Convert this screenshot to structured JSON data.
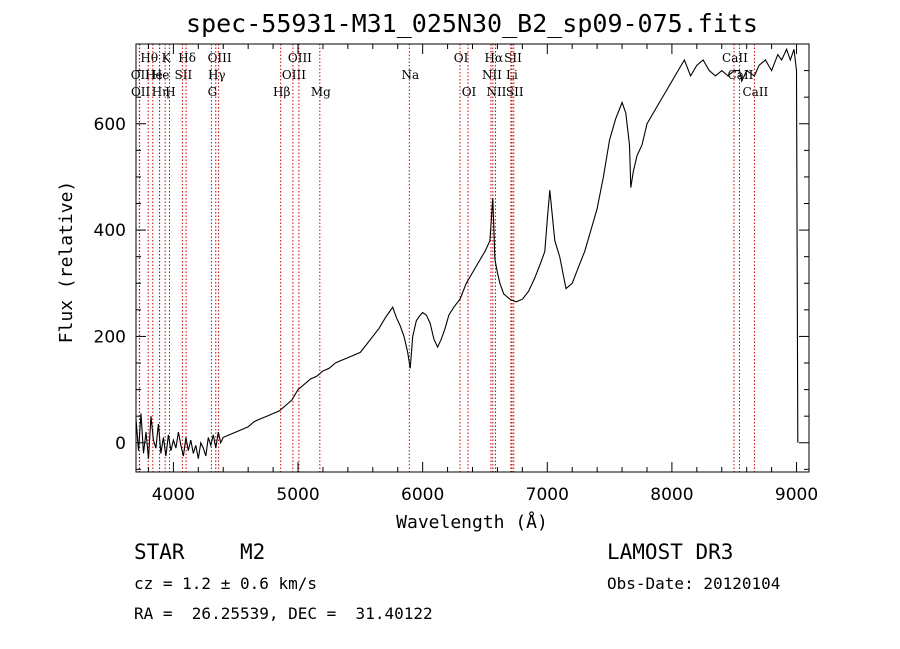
{
  "chart_data": {
    "type": "line",
    "title": "spec-55931-M31_025N30_B2_sp09-075.fits",
    "xlabel": "Wavelength (Å)",
    "ylabel": "Flux (relative)",
    "xlim": [
      3700,
      9100
    ],
    "ylim": [
      -55,
      750
    ],
    "xticks": [
      4000,
      5000,
      6000,
      7000,
      8000,
      9000
    ],
    "yticks": [
      0,
      200,
      400,
      600
    ],
    "series": [
      {
        "name": "flux",
        "x": [
          3700,
          3720,
          3740,
          3760,
          3780,
          3800,
          3820,
          3840,
          3860,
          3880,
          3900,
          3920,
          3940,
          3960,
          3980,
          4000,
          4020,
          4040,
          4060,
          4080,
          4100,
          4120,
          4140,
          4160,
          4180,
          4200,
          4220,
          4240,
          4260,
          4280,
          4300,
          4320,
          4340,
          4360,
          4380,
          4400,
          4450,
          4500,
          4550,
          4600,
          4650,
          4700,
          4750,
          4800,
          4850,
          4900,
          4950,
          5000,
          5050,
          5100,
          5150,
          5200,
          5250,
          5300,
          5350,
          5400,
          5450,
          5500,
          5550,
          5600,
          5650,
          5700,
          5730,
          5760,
          5790,
          5820,
          5850,
          5880,
          5900,
          5920,
          5950,
          5980,
          6000,
          6030,
          6060,
          6090,
          6120,
          6150,
          6180,
          6210,
          6250,
          6300,
          6350,
          6400,
          6450,
          6500,
          6540,
          6563,
          6580,
          6600,
          6620,
          6650,
          6700,
          6750,
          6800,
          6850,
          6900,
          6950,
          6980,
          7000,
          7020,
          7060,
          7100,
          7150,
          7200,
          7250,
          7300,
          7350,
          7400,
          7450,
          7500,
          7550,
          7600,
          7630,
          7660,
          7670,
          7690,
          7720,
          7760,
          7800,
          7850,
          7900,
          7950,
          8000,
          8050,
          8100,
          8150,
          8200,
          8250,
          8300,
          8350,
          8400,
          8450,
          8500,
          8542,
          8560,
          8600,
          8662,
          8700,
          8750,
          8800,
          8850,
          8880,
          8920,
          8950,
          8980,
          9000,
          9010
        ],
        "values": [
          45,
          -15,
          55,
          -20,
          20,
          -30,
          50,
          5,
          -10,
          35,
          -20,
          10,
          -25,
          15,
          -15,
          5,
          -10,
          20,
          -5,
          -25,
          10,
          -15,
          5,
          -20,
          -5,
          -30,
          0,
          -10,
          -25,
          10,
          -5,
          15,
          -10,
          20,
          0,
          10,
          15,
          20,
          25,
          30,
          40,
          45,
          50,
          55,
          60,
          70,
          80,
          100,
          110,
          120,
          125,
          135,
          140,
          150,
          155,
          160,
          165,
          170,
          185,
          200,
          215,
          235,
          245,
          255,
          235,
          220,
          200,
          170,
          140,
          200,
          230,
          240,
          245,
          240,
          225,
          195,
          180,
          195,
          215,
          240,
          255,
          270,
          300,
          320,
          340,
          360,
          380,
          460,
          345,
          320,
          300,
          280,
          270,
          265,
          270,
          285,
          310,
          340,
          360,
          420,
          475,
          380,
          350,
          290,
          300,
          330,
          360,
          400,
          440,
          500,
          570,
          610,
          640,
          620,
          560,
          480,
          510,
          540,
          560,
          600,
          620,
          640,
          660,
          680,
          700,
          720,
          690,
          710,
          720,
          700,
          690,
          700,
          690,
          700,
          700,
          680,
          700,
          690,
          710,
          720,
          700,
          730,
          720,
          740,
          720,
          740,
          700,
          0
        ]
      }
    ],
    "lines": [
      {
        "name": "Hθ",
        "wave": 3798,
        "row": 1
      },
      {
        "name": "OII",
        "wave": 3727,
        "row": 2
      },
      {
        "name": "OII",
        "wave": 3729,
        "row": 3
      },
      {
        "name": "He",
        "wave": 3835,
        "row": 2
      },
      {
        "name": "K",
        "wave": 3934,
        "row": 1
      },
      {
        "name": "Hη",
        "wave": 3889,
        "row": 3
      },
      {
        "name": "He",
        "wave": 3889,
        "row": 2
      },
      {
        "name": "H",
        "wave": 3969,
        "row": 3
      },
      {
        "name": "SII",
        "wave": 4072,
        "row": 2
      },
      {
        "name": "Hδ",
        "wave": 4102,
        "row": 1
      },
      {
        "name": "OIII",
        "wave": 4363,
        "row": 1
      },
      {
        "name": "Hγ",
        "wave": 4340,
        "row": 2
      },
      {
        "name": "G",
        "wave": 4305,
        "row": 3
      },
      {
        "name": "Hβ",
        "wave": 4861,
        "row": 3
      },
      {
        "name": "OIII",
        "wave": 4959,
        "row": 2
      },
      {
        "name": "OIII",
        "wave": 5007,
        "row": 1
      },
      {
        "name": "Mg",
        "wave": 5175,
        "row": 3
      },
      {
        "name": "Na",
        "wave": 5893,
        "row": 2
      },
      {
        "name": "OI",
        "wave": 6300,
        "row": 1
      },
      {
        "name": "OI",
        "wave": 6364,
        "row": 3
      },
      {
        "name": "Hα",
        "wave": 6563,
        "row": 1
      },
      {
        "name": "NII",
        "wave": 6548,
        "row": 2
      },
      {
        "name": "NII",
        "wave": 6584,
        "row": 3
      },
      {
        "name": "SII",
        "wave": 6717,
        "row": 1
      },
      {
        "name": "Li",
        "wave": 6708,
        "row": 2
      },
      {
        "name": "SII",
        "wave": 6731,
        "row": 3
      },
      {
        "name": "CaII",
        "wave": 8498,
        "row": 1
      },
      {
        "name": "CaII",
        "wave": 8542,
        "row": 2
      },
      {
        "name": "CaII",
        "wave": 8662,
        "row": 3
      }
    ]
  },
  "info": {
    "class": "STAR",
    "subclass": "M2",
    "survey": "LAMOST DR3",
    "cz": "cz = 1.2 ± 0.6 km/s",
    "obs_date": "Obs-Date: 20120104",
    "coords": "RA =  26.25539, DEC =  31.40122"
  },
  "colors": {
    "line_marker": "#cc0000",
    "spectrum": "#000000"
  }
}
